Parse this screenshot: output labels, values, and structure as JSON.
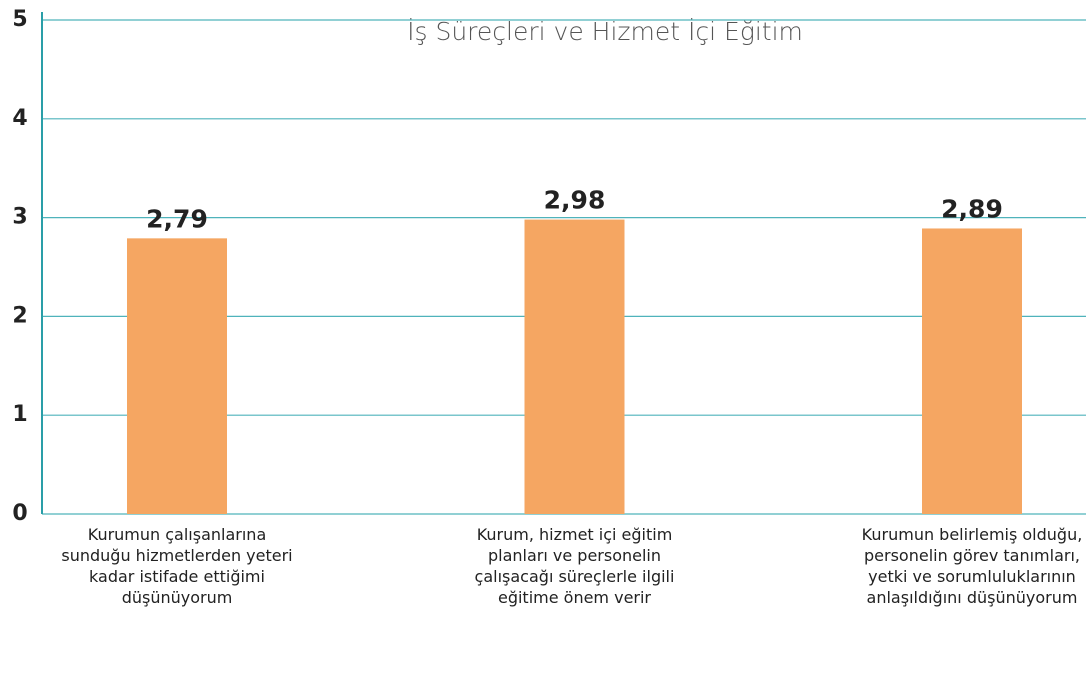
{
  "chart_data": {
    "type": "bar",
    "title": "İş Süreçleri ve Hizmet İçi Eğitim",
    "categories": [
      "Kurumun çalışanlarına sunduğu hizmetlerden yeteri kadar istifade ettiğimi düşünüyorum",
      "Kurum, hizmet içi eğitim planları ve personelin çalışacağı süreçlerle ilgili eğitime önem verir",
      "Kurumun belirlemiş olduğu, personelin görev tanımları, yetki ve sorumluluklarının anlaşıldığını düşünüyorum"
    ],
    "values": [
      2.79,
      2.98,
      2.89
    ],
    "value_labels": [
      "2,79",
      "2,98",
      "2,89"
    ],
    "color": "#f5a662",
    "ylim": [
      0,
      5
    ],
    "yticks": [
      0,
      1,
      2,
      3,
      4,
      5
    ],
    "grid": true
  }
}
